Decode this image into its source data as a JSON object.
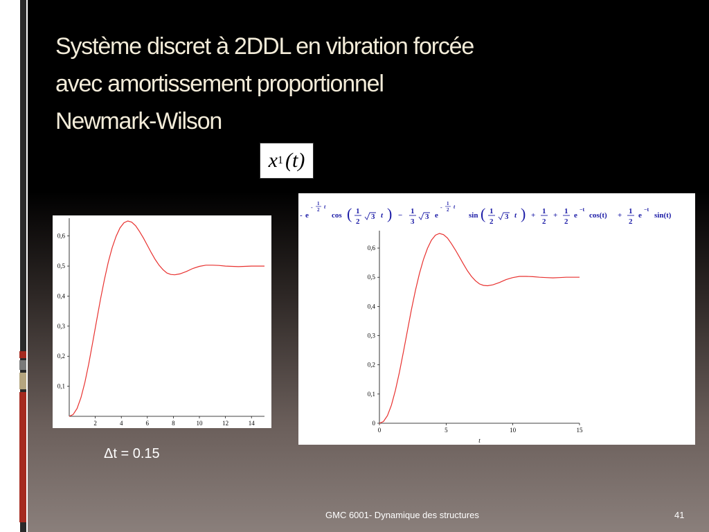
{
  "slide": {
    "title_lines": [
      "Système discret à 2DDL en vibration forcée",
      "avec amortissement proportionnel",
      "Newmark-Wilson"
    ],
    "variable_label": {
      "base": "x",
      "sub": "1",
      "arg": "(t)"
    },
    "dt_label": "Δt = 0.15",
    "footer": "GMC 6001-  Dynamique des structures",
    "page_number": "41",
    "colors": {
      "curve": "#e8302e",
      "title": "#f3ecd9",
      "accent_red": "#a52a1f",
      "formula_blue": "#1a1aa6"
    }
  },
  "chart_data": [
    {
      "type": "line",
      "title": "",
      "xlabel": "",
      "ylabel": "",
      "xlim": [
        0,
        15
      ],
      "ylim": [
        0,
        0.65
      ],
      "x_ticks": [
        "2",
        "4",
        "6",
        "8",
        "10",
        "12",
        "14"
      ],
      "y_ticks": [
        "0,1",
        "0,2",
        "0,3",
        "0,4",
        "0,5",
        "0,6"
      ],
      "grid": false,
      "series": [
        {
          "x": [
            0,
            0.3,
            0.6,
            0.9,
            1.2,
            1.5,
            1.8,
            2.1,
            2.4,
            2.7,
            3.0,
            3.3,
            3.6,
            3.9,
            4.2,
            4.5,
            4.8,
            5.1,
            5.4,
            5.7,
            6.0,
            6.3,
            6.6,
            6.9,
            7.2,
            7.5,
            7.8,
            8.1,
            8.5,
            9.0,
            9.5,
            10.0,
            10.5,
            11.0,
            11.5,
            12.0,
            12.5,
            13.0,
            13.5,
            14.0,
            14.5,
            15.0
          ],
          "y": [
            0,
            0.006,
            0.026,
            0.062,
            0.113,
            0.175,
            0.245,
            0.318,
            0.389,
            0.455,
            0.513,
            0.561,
            0.599,
            0.627,
            0.644,
            0.65,
            0.646,
            0.634,
            0.615,
            0.593,
            0.569,
            0.545,
            0.522,
            0.503,
            0.488,
            0.477,
            0.472,
            0.471,
            0.474,
            0.482,
            0.492,
            0.499,
            0.503,
            0.503,
            0.502,
            0.5,
            0.499,
            0.498,
            0.499,
            0.5,
            0.5,
            0.5
          ]
        }
      ]
    },
    {
      "type": "line",
      "title": "",
      "xlabel": "t",
      "ylabel": "",
      "xlim": [
        0,
        15
      ],
      "ylim": [
        0,
        0.65
      ],
      "x_ticks": [
        "0",
        "5",
        "10",
        "15"
      ],
      "y_ticks": [
        "0",
        "0,1",
        "0,2",
        "0,3",
        "0,4",
        "0,5",
        "0,6"
      ],
      "grid": false,
      "formula": {
        "t1_sign": "-",
        "exp_neg_half_t": "e",
        "exp_num": "1",
        "exp_den": "2",
        "exp_var": "t",
        "cos": "cos",
        "sin": "sin",
        "frac_half_num": "1",
        "frac_half_den": "2",
        "sqrt3": "3",
        "arg_var": "t",
        "minus": "−",
        "frac_third_num": "1",
        "frac_third_den": "3",
        "plus": "+",
        "exp_neg_t": "e",
        "neg_t": "−t",
        "cos_t": "cos(t)",
        "sin_t": "sin(t)"
      },
      "series": [
        {
          "x": [
            0,
            0.3,
            0.6,
            0.9,
            1.2,
            1.5,
            1.8,
            2.1,
            2.4,
            2.7,
            3.0,
            3.3,
            3.6,
            3.9,
            4.2,
            4.5,
            4.8,
            5.1,
            5.4,
            5.7,
            6.0,
            6.3,
            6.6,
            6.9,
            7.2,
            7.5,
            7.8,
            8.1,
            8.5,
            9.0,
            9.5,
            10.0,
            10.5,
            11.0,
            11.5,
            12.0,
            12.5,
            13.0,
            13.5,
            14.0,
            14.5,
            15.0
          ],
          "y": [
            0,
            0.006,
            0.026,
            0.062,
            0.113,
            0.175,
            0.245,
            0.318,
            0.389,
            0.455,
            0.513,
            0.561,
            0.599,
            0.627,
            0.644,
            0.65,
            0.646,
            0.634,
            0.615,
            0.593,
            0.569,
            0.545,
            0.522,
            0.503,
            0.488,
            0.477,
            0.472,
            0.471,
            0.474,
            0.482,
            0.492,
            0.499,
            0.503,
            0.503,
            0.502,
            0.5,
            0.499,
            0.498,
            0.499,
            0.5,
            0.5,
            0.5
          ]
        }
      ]
    }
  ]
}
